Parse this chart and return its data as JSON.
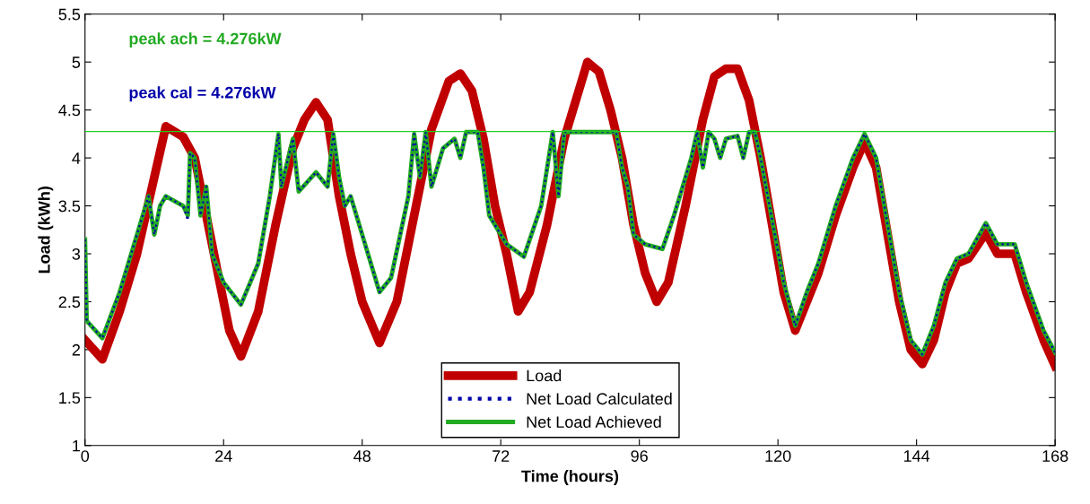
{
  "chart_data": {
    "type": "line",
    "xlabel": "Time (hours)",
    "ylabel": "Load (kWh)",
    "xlim": [
      0,
      168
    ],
    "xticks": [
      0,
      24,
      48,
      72,
      96,
      120,
      144,
      168
    ],
    "ylim": [
      1,
      5.5
    ],
    "yticks": [
      1,
      1.5,
      2,
      2.5,
      3,
      3.5,
      4,
      4.5,
      5,
      5.5
    ],
    "grid": false,
    "legend": "bottom",
    "marker": "none",
    "annotations": [
      "peak ach = 4.276kW",
      "peak cal = 4.276kW"
    ],
    "ref_lines": [
      {
        "axis": "y",
        "value": 4.276,
        "color": "#22cc22",
        "line_style": "solid"
      }
    ],
    "series": [
      {
        "name": "Load",
        "color": "#c00000",
        "line_style": "solid",
        "x": [
          0,
          3,
          6,
          9,
          12,
          14,
          17,
          19,
          21,
          23,
          25,
          27,
          30,
          33,
          36,
          38,
          40,
          42,
          44,
          46,
          48,
          51,
          54,
          57,
          60,
          63,
          65,
          67,
          69,
          71,
          73,
          75,
          77,
          80,
          83,
          86,
          87,
          89,
          91,
          93,
          95,
          97,
          99,
          101,
          104,
          107,
          109,
          111,
          113,
          115,
          117,
          119,
          121,
          123,
          125,
          127,
          130,
          133,
          135,
          137,
          139,
          141,
          143,
          145,
          147,
          149,
          151,
          153,
          156,
          158,
          161,
          163,
          166,
          168
        ],
        "values": [
          2.1,
          1.9,
          2.4,
          3.0,
          3.8,
          4.33,
          4.22,
          4.0,
          3.4,
          2.8,
          2.2,
          1.93,
          2.4,
          3.3,
          4.1,
          4.4,
          4.58,
          4.4,
          3.6,
          3.0,
          2.5,
          2.07,
          2.5,
          3.4,
          4.3,
          4.8,
          4.88,
          4.7,
          4.2,
          3.5,
          3.0,
          2.4,
          2.6,
          3.3,
          4.2,
          4.8,
          5.0,
          4.9,
          4.5,
          4.0,
          3.3,
          2.8,
          2.5,
          2.7,
          3.5,
          4.4,
          4.85,
          4.93,
          4.93,
          4.6,
          4.0,
          3.3,
          2.6,
          2.2,
          2.5,
          2.8,
          3.4,
          3.9,
          4.17,
          3.9,
          3.2,
          2.5,
          2.0,
          1.85,
          2.1,
          2.6,
          2.9,
          2.95,
          3.22,
          3.0,
          3.0,
          2.6,
          2.1,
          1.83
        ]
      },
      {
        "name": "Net Load Calculated",
        "color": "#0000aa",
        "line_style": "dotted",
        "x": [
          0,
          0.3,
          3,
          6,
          9,
          11,
          12,
          13,
          14,
          17,
          17.8,
          18.2,
          19,
          20,
          21,
          22,
          24,
          27,
          30,
          32,
          33.5,
          34,
          36,
          37,
          40,
          42,
          43,
          44,
          45,
          46,
          48,
          51,
          53,
          56,
          57,
          58,
          59,
          60,
          62,
          64,
          65,
          66,
          68,
          69,
          70,
          73,
          76,
          79,
          81,
          82,
          83,
          92,
          93,
          94,
          95,
          97,
          100,
          102,
          105,
          106,
          107,
          108,
          109,
          110,
          111,
          113,
          114,
          115,
          116,
          117,
          119,
          121,
          123,
          125,
          127,
          130,
          133,
          135,
          137,
          139,
          141,
          143,
          145,
          147,
          149,
          151,
          153,
          156,
          158,
          161,
          163,
          166,
          168
        ],
        "values": [
          3.15,
          2.3,
          2.12,
          2.6,
          3.2,
          3.6,
          3.2,
          3.5,
          3.6,
          3.5,
          3.35,
          4.05,
          4.0,
          3.4,
          3.7,
          3.0,
          2.7,
          2.47,
          2.9,
          3.6,
          4.25,
          3.7,
          4.2,
          3.65,
          3.85,
          3.7,
          4.25,
          3.8,
          3.5,
          3.6,
          3.2,
          2.6,
          2.75,
          3.6,
          4.25,
          3.8,
          4.27,
          3.7,
          4.1,
          4.2,
          4.0,
          4.27,
          4.27,
          3.9,
          3.4,
          3.1,
          2.97,
          3.5,
          4.27,
          3.6,
          4.27,
          4.27,
          3.9,
          3.7,
          3.2,
          3.1,
          3.05,
          3.4,
          4.0,
          4.27,
          3.9,
          4.27,
          4.2,
          4.0,
          4.2,
          4.23,
          4.0,
          4.27,
          4.27,
          4.0,
          3.35,
          2.7,
          2.25,
          2.6,
          2.9,
          3.5,
          4.0,
          4.25,
          4.0,
          3.3,
          2.6,
          2.1,
          1.95,
          2.25,
          2.7,
          2.95,
          3.0,
          3.32,
          3.1,
          3.1,
          2.7,
          2.2,
          1.97
        ]
      },
      {
        "name": "Net Load Achieved",
        "color": "#22aa22",
        "line_style": "solid",
        "x": [
          0,
          0.3,
          3,
          6,
          9,
          11,
          12,
          13,
          14,
          17,
          17.8,
          18.2,
          19,
          20,
          21,
          22,
          24,
          27,
          30,
          32,
          33.5,
          34,
          36,
          37,
          40,
          42,
          43,
          44,
          45,
          46,
          48,
          51,
          53,
          56,
          57,
          58,
          59,
          60,
          62,
          64,
          65,
          66,
          68,
          69,
          70,
          73,
          76,
          79,
          81,
          82,
          83,
          92,
          93,
          94,
          95,
          97,
          100,
          102,
          105,
          106,
          107,
          108,
          109,
          110,
          111,
          113,
          114,
          115,
          116,
          117,
          119,
          121,
          123,
          125,
          127,
          130,
          133,
          135,
          137,
          139,
          141,
          143,
          145,
          147,
          149,
          151,
          153,
          156,
          158,
          161,
          163,
          166,
          168
        ],
        "values": [
          3.15,
          2.3,
          2.12,
          2.6,
          3.2,
          3.6,
          3.2,
          3.5,
          3.6,
          3.5,
          3.4,
          4.05,
          4.0,
          3.4,
          3.7,
          3.0,
          2.7,
          2.47,
          2.9,
          3.6,
          4.25,
          3.7,
          4.2,
          3.65,
          3.85,
          3.7,
          4.25,
          3.8,
          3.5,
          3.6,
          3.2,
          2.6,
          2.75,
          3.6,
          4.25,
          3.8,
          4.27,
          3.7,
          4.1,
          4.2,
          4.0,
          4.27,
          4.27,
          3.9,
          3.4,
          3.1,
          2.97,
          3.5,
          4.27,
          3.6,
          4.27,
          4.27,
          3.9,
          3.7,
          3.2,
          3.1,
          3.05,
          3.4,
          4.0,
          4.27,
          3.9,
          4.27,
          4.2,
          4.0,
          4.2,
          4.23,
          4.0,
          4.27,
          4.27,
          4.0,
          3.35,
          2.7,
          2.25,
          2.6,
          2.9,
          3.5,
          4.0,
          4.25,
          4.0,
          3.3,
          2.6,
          2.1,
          1.95,
          2.25,
          2.7,
          2.95,
          3.0,
          3.32,
          3.1,
          3.1,
          2.7,
          2.2,
          1.97
        ]
      }
    ]
  }
}
